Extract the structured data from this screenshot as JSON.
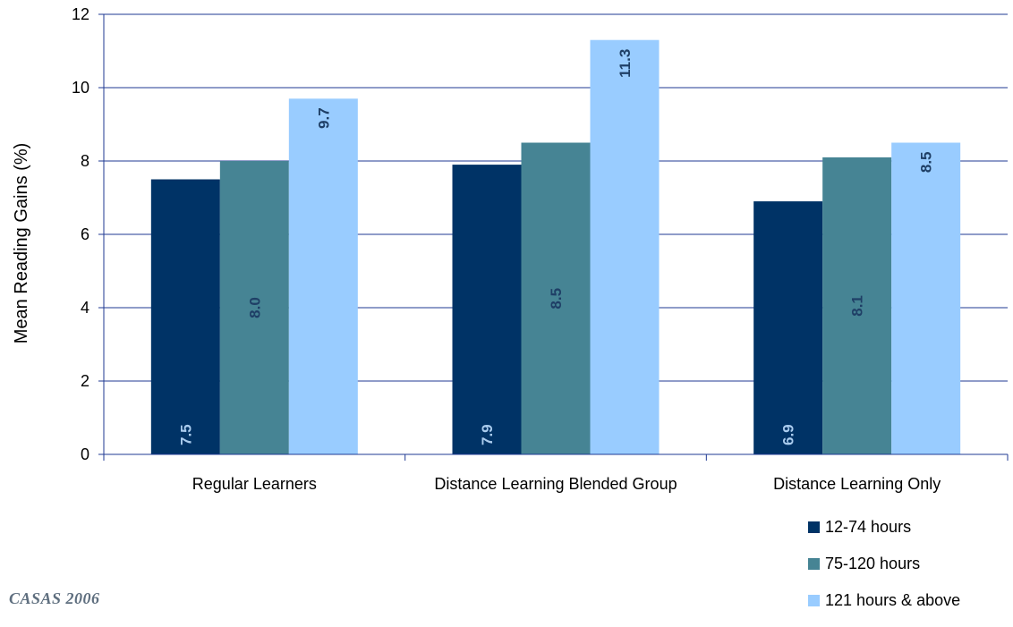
{
  "chart_data": {
    "type": "bar",
    "ylabel": "Mean Reading Gains (%)",
    "ylim": [
      0,
      12
    ],
    "yticks": [
      0,
      2,
      4,
      6,
      8,
      10,
      12
    ],
    "grid": true,
    "legend_position": "bottom-right",
    "categories": [
      "Regular Learners",
      "Distance Learning Blended Group",
      "Distance Learning Only"
    ],
    "series": [
      {
        "name": "12-74 hours",
        "values": [
          7.5,
          7.9,
          6.9
        ],
        "labels": [
          "7.5",
          "7.9",
          "6.9"
        ],
        "color": "#003366",
        "label_color": "#aaccee"
      },
      {
        "name": "75-120 hours",
        "values": [
          8.0,
          8.5,
          8.1
        ],
        "labels": [
          "8.0",
          "8.5",
          "8.1"
        ],
        "color": "#468494",
        "label_color": "#1f3f66"
      },
      {
        "name": "121 hours & above",
        "values": [
          9.7,
          11.3,
          8.5
        ],
        "labels": [
          "9.7",
          "11.3",
          "8.5"
        ],
        "color": "#99ccff",
        "label_color": "#1f3f66"
      }
    ]
  },
  "footer": {
    "logo_text": "CASAS 2006"
  }
}
